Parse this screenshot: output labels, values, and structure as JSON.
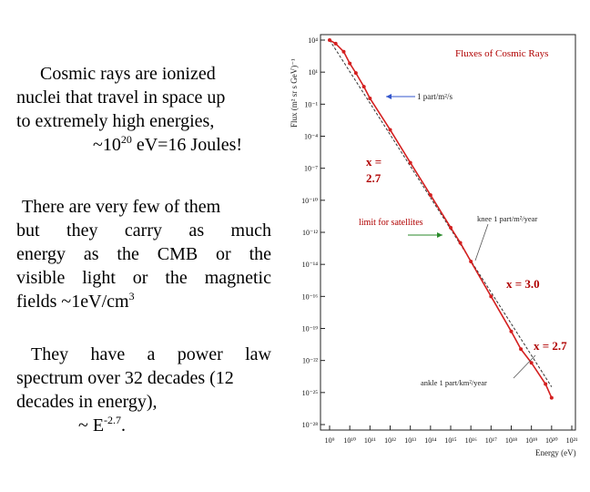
{
  "text": {
    "p1": {
      "l1": "Cosmic rays are ionized",
      "l2": "nuclei that travel in space up",
      "l3": "to extremely high energies,",
      "l4a": "~10",
      "l4sup": "20",
      "l4b": " eV=16 Joules!"
    },
    "p2": {
      "l1": "There are very few of them",
      "l2": "but they carry as much",
      "l3": "energy as the CMB or the",
      "l4": "visible light or the magnetic",
      "l5a": "fields ~1eV/cm",
      "l5sup": "3"
    },
    "p3": {
      "l1": "They have a power law",
      "l2": "spectrum over 32 decades (12",
      "l3": "decades in energy),",
      "l4a": "~ E",
      "l4sup": "-2.7",
      "l4b": "."
    }
  },
  "chart": {
    "title": "Fluxes of Cosmic Rays",
    "ylabel": "Flux (m² sr s GeV)⁻¹",
    "xlabel": "Energy (eV)",
    "annotations": {
      "one_per_m2_s": "1 part/m²/s",
      "limit_satellites": "limit for satellites",
      "knee": "knee 1 part/m²/year",
      "ankle": "ankle 1 part/km²/year",
      "x27_left_a": "x =",
      "x27_left_b": "2.7",
      "x30": "x = 3.0",
      "x27_right": "x = 2.7"
    },
    "colors": {
      "data": "#d42020",
      "guide": "#333333",
      "label": "#b00000",
      "arrow_blue": "#3355cc",
      "arrow_green": "#2a8a2a"
    }
  },
  "chart_data": {
    "type": "scatter",
    "title": "Fluxes of Cosmic Rays",
    "xlabel": "Energy (eV)",
    "ylabel": "Flux (m² sr s GeV)⁻¹",
    "xscale": "log",
    "yscale": "log",
    "xlim": [
      1000000000.0,
      1e+21
    ],
    "ylim": [
      1e-29,
      10000.0
    ],
    "x_ticks": [
      "10⁹",
      "10¹⁰",
      "10¹¹",
      "10¹²",
      "10¹³",
      "10¹⁴",
      "10¹⁵",
      "10¹⁶",
      "10¹⁷",
      "10¹⁸",
      "10¹⁹",
      "10²⁰",
      "10²¹"
    ],
    "y_ticks": [
      "10⁴",
      "10¹",
      "10⁻¹",
      "10⁻⁴",
      "10⁻⁷",
      "10⁻¹⁰",
      "10⁻¹²",
      "10⁻¹⁴",
      "10⁻¹⁶",
      "10⁻¹⁹",
      "10⁻²²",
      "10⁻²⁵",
      "10⁻²⁸"
    ],
    "series": [
      {
        "x": [
          1000000000.0,
          2000000000.0,
          5000000000.0,
          10000000000.0,
          20000000000.0,
          50000000000.0,
          100000000000.0,
          1000000000000.0,
          10000000000000.0,
          100000000000000.0,
          1000000000000000.0,
          3000000000000000.0,
          1e+16,
          1e+17,
          1e+18,
          3e+18,
          1e+19,
          5e+19,
          1e+20
        ],
        "y": [
          10000.0,
          5000.0,
          1000.0,
          100.0,
          15.0,
          1.0,
          0.1,
          0.0002,
          3e-07,
          5e-10,
          8e-13,
          4e-14,
          1e-15,
          1e-18,
          1e-21,
          3e-23,
          2e-24,
          3e-26,
          2e-27
        ]
      }
    ]
  }
}
